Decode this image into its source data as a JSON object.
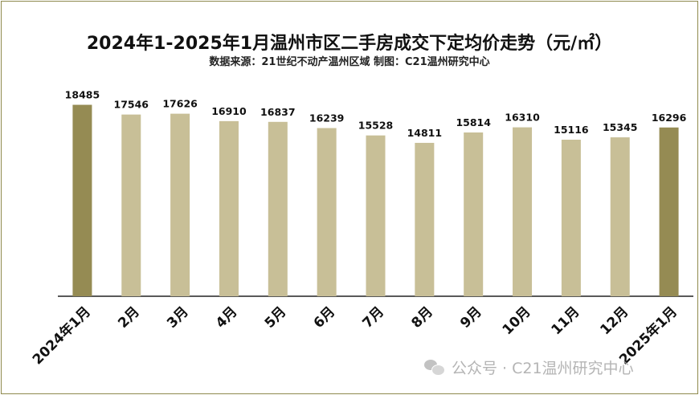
{
  "chart_data": {
    "type": "bar",
    "title": "2024年1-2025年1月温州市区二手房成交下定均价走势（元/㎡）",
    "subtitle": "数据来源：21世纪不动产温州区域  制图：C21温州研究中心",
    "categories": [
      "2024年1月",
      "2月",
      "3月",
      "4月",
      "5月",
      "6月",
      "7月",
      "8月",
      "9月",
      "10月",
      "11月",
      "12月",
      "2025年1月"
    ],
    "values": [
      18485,
      17546,
      17626,
      16910,
      16837,
      16239,
      15528,
      14811,
      15814,
      16310,
      15116,
      15345,
      16296
    ],
    "highlight_indices": [
      0,
      12
    ],
    "ylim": [
      0,
      20000
    ],
    "grid": false,
    "legend": "none",
    "colors": {
      "bar": "#c8bf97",
      "highlight": "#958b53",
      "axis": "#222222"
    }
  },
  "watermark": {
    "icon": "wechat-icon",
    "text": "公众号 · C21温州研究中心"
  }
}
